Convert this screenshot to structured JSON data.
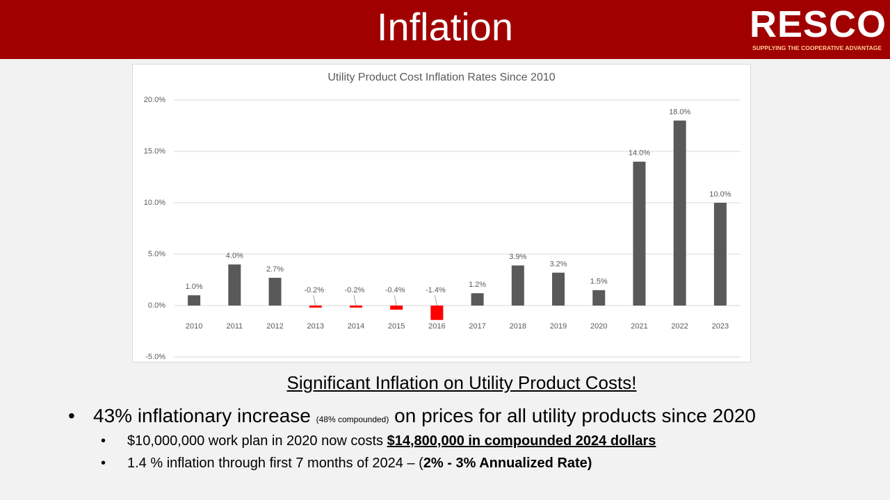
{
  "header": {
    "title": "Inflation",
    "logo": "RESCO",
    "tagline": "SUPPLYING THE COOPERATIVE ADVANTAGE"
  },
  "chart_data": {
    "type": "bar",
    "title": "Utility Product Cost Inflation Rates Since 2010",
    "categories": [
      "2010",
      "2011",
      "2012",
      "2013",
      "2014",
      "2015",
      "2016",
      "2017",
      "2018",
      "2019",
      "2020",
      "2021",
      "2022",
      "2023"
    ],
    "values": [
      1.0,
      4.0,
      2.7,
      -0.2,
      -0.2,
      -0.4,
      -1.4,
      1.2,
      3.9,
      3.2,
      1.5,
      14.0,
      18.0,
      10.0
    ],
    "value_labels": [
      "1.0%",
      "4.0%",
      "2.7%",
      "-0.2%",
      "-0.2%",
      "-0.4%",
      "-1.4%",
      "1.2%",
      "3.9%",
      "3.2%",
      "1.5%",
      "14.0%",
      "18.0%",
      "10.0%"
    ],
    "colors": [
      "#595959",
      "#595959",
      "#595959",
      "#ff0000",
      "#ff0000",
      "#ff0000",
      "#ff0000",
      "#595959",
      "#595959",
      "#595959",
      "#595959",
      "#595959",
      "#595959",
      "#595959"
    ],
    "ylim": [
      -5,
      20
    ],
    "yticks": [
      {
        "value": -5,
        "label": "-5.0%"
      },
      {
        "value": 0,
        "label": "0.0%"
      },
      {
        "value": 5,
        "label": "5.0%"
      },
      {
        "value": 10,
        "label": "10.0%"
      },
      {
        "value": 15,
        "label": "15.0%"
      },
      {
        "value": 20,
        "label": "20.0%"
      }
    ],
    "grid": true
  },
  "headline": "Significant Inflation on Utility Product Costs!",
  "bullets": [
    {
      "text": "43% inflationary increase",
      "note": "(48% compounded)",
      "rest": "on prices for all utility products since 2020"
    }
  ],
  "sub_bullets": [
    {
      "text": "$10,000,000 work plan in 2020 now costs",
      "emphasis": "$14,800,000 in compounded 2024 dollars"
    },
    {
      "text": "1.4 % inflation through first 7 months of 2024 – (",
      "emphasis": "2% - 3% Annualized Rate",
      "end": ")"
    }
  ]
}
